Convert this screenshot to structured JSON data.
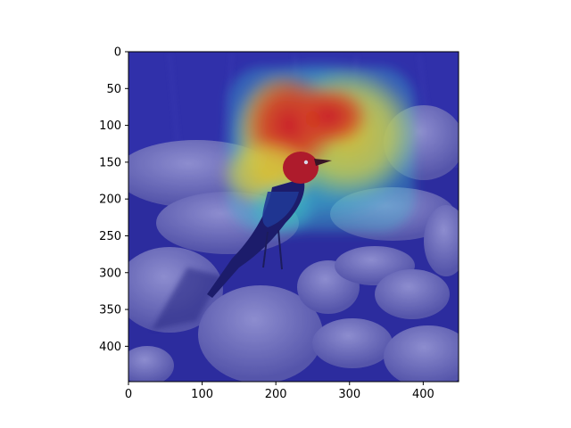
{
  "figure": {
    "image_alt": "Photograph of a blackbird perched on smooth river rocks with a jet-colormap attention heatmap overlaid, hottest region above and behind the bird's head",
    "image_extent": {
      "x": [
        0,
        448
      ],
      "y": [
        448,
        0
      ]
    },
    "x_ticks": [
      {
        "value": 0,
        "label": "0"
      },
      {
        "value": 100,
        "label": "100"
      },
      {
        "value": 200,
        "label": "200"
      },
      {
        "value": 300,
        "label": "300"
      },
      {
        "value": 400,
        "label": "400"
      }
    ],
    "y_ticks": [
      {
        "value": 0,
        "label": "0"
      },
      {
        "value": 50,
        "label": "50"
      },
      {
        "value": 100,
        "label": "100"
      },
      {
        "value": 150,
        "label": "150"
      },
      {
        "value": 200,
        "label": "200"
      },
      {
        "value": 250,
        "label": "250"
      },
      {
        "value": 300,
        "label": "300"
      },
      {
        "value": 350,
        "label": "350"
      },
      {
        "value": 400,
        "label": "400"
      }
    ],
    "colors": {
      "overlay_cold": "#2a2ab8",
      "overlay_hot": "#e01010",
      "overlay_warm": "#f0e020",
      "overlay_mid": "#30e0a0"
    }
  }
}
